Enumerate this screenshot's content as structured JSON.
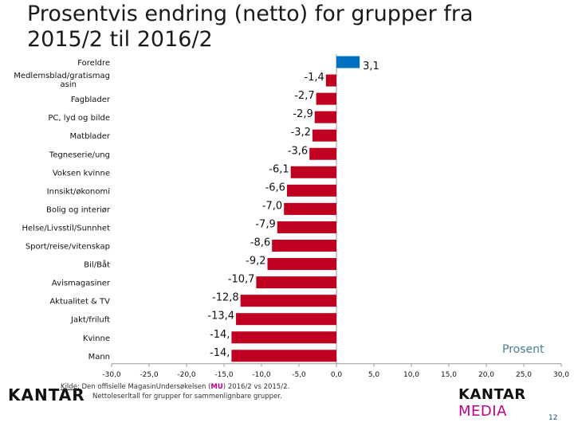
{
  "title": "Prosentvis endring (netto) for grupper fra 2015/2 til 2016/2",
  "unit_label": "Prosent",
  "logo_left": "KANTAR",
  "logo_right_a": "KANTAR ",
  "logo_right_b": "MEDIA",
  "source": {
    "kilde": "Kilde",
    "text_before": ": Den offisielle MagasinUndersøkelsen (",
    "mu": "MU",
    "text_after": ") 2016/2 vs 2015/2.",
    "line2": "Nettoleserltall for grupper for sammenlignbare grupper."
  },
  "page_number": "12",
  "colors": {
    "positive": "#0070c0",
    "negative": "#c00020",
    "axis": "#999999"
  },
  "chart_data": {
    "type": "bar",
    "orientation": "horizontal",
    "title": "Prosentvis endring (netto) for grupper fra 2015/2 til 2016/2",
    "xlabel": "Prosent",
    "xlim": [
      -30,
      30
    ],
    "xticks": [
      -30,
      -25,
      -20,
      -15,
      -10,
      -5,
      0,
      5,
      10,
      15,
      20,
      25,
      30
    ],
    "xtick_labels": [
      "-30,0",
      "-25,0",
      "-20,0",
      "-15,0",
      "-10,0",
      "-5,0",
      "0,0",
      "5,0",
      "10,0",
      "15,0",
      "20,0",
      "25,0",
      "30,0"
    ],
    "categories": [
      "Foreldre",
      "Medlemsblad/gratismag asin",
      "Fagblader",
      "PC, lyd og bilde",
      "Matblader",
      "Tegneserie/ung",
      "Voksen kvinne",
      "Innsikt/økonomi",
      "Bolig og interiør",
      "Helse/Livsstil/Sunnhet",
      "Sport/reise/vitenskap",
      "Bil/Båt",
      "Avismagasiner",
      "Aktualitet & TV",
      "Jakt/friluft",
      "Kvinne",
      "Mann"
    ],
    "values": [
      3.1,
      -1.4,
      -2.7,
      -2.9,
      -3.2,
      -3.6,
      -6.1,
      -6.6,
      -7.0,
      -7.9,
      -8.6,
      -9.2,
      -10.7,
      -12.8,
      -13.4,
      -14.0,
      -14.0
    ],
    "value_labels": [
      "3,1",
      "-1,4",
      "-2,7",
      "-2,9",
      "-3,2",
      "-3,6",
      "-6,1",
      "-6,6",
      "-7,0",
      "-7,9",
      "-8,6",
      "-9,2",
      "-10,7",
      "-12,8",
      "-13,4",
      "-14,",
      "-14,"
    ]
  }
}
